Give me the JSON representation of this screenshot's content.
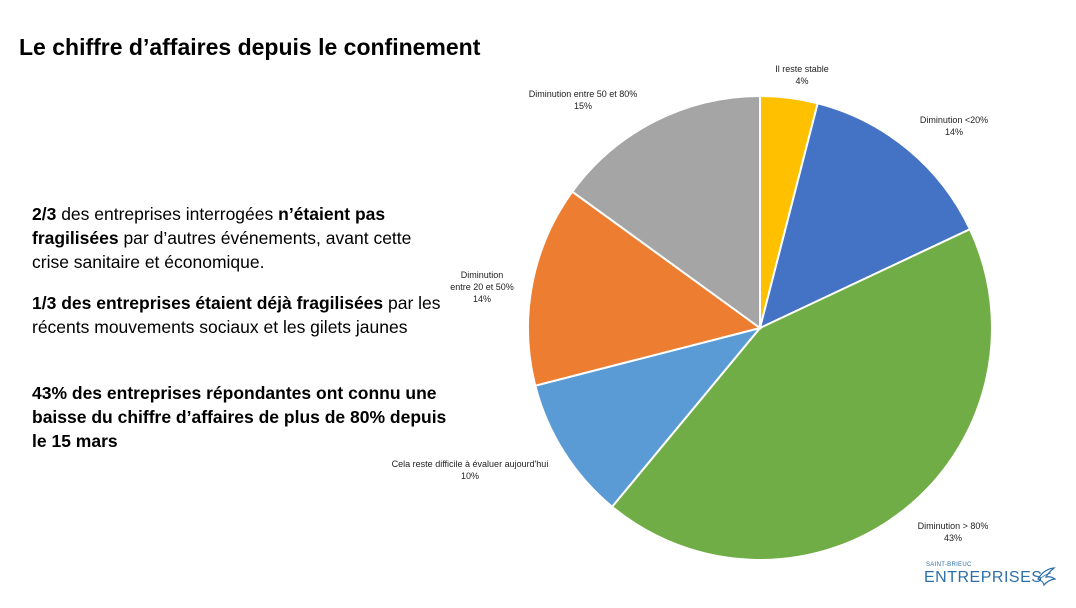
{
  "slide": {
    "title": "Le chiffre d’affaires depuis le confinement",
    "paragraphs": [
      {
        "a_bold": "2/3",
        "b_normal": " des entreprises interrogées ",
        "c_bold": "n’étaient pas fragilisées",
        "d_normal": " par d’autres événements, avant cette crise sanitaire et économique."
      },
      {
        "a_bold": "1/3 des entreprises étaient déjà fragilisées",
        "b_normal": " par les récents mouvements sociaux et les gilets jaunes"
      },
      {
        "a_bold": "43% des entreprises répondantes ont connu une baisse du chiffre d’affaires de plus de 80% depuis le 15 mars"
      }
    ],
    "logo": {
      "top": "SAINT-BRIEUC",
      "main": "ENTREPRISES"
    }
  },
  "chart_data": {
    "type": "pie",
    "slices": [
      {
        "label": "Il reste stable",
        "value": 4,
        "value_label": "4%",
        "color": "#FFC000"
      },
      {
        "label": "Diminution <20%",
        "value": 14,
        "value_label": "14%",
        "color": "#4472C4"
      },
      {
        "label": "Diminution > 80%",
        "value": 43,
        "value_label": "43%",
        "color": "#70AD47"
      },
      {
        "label": "Cela reste difficile à évaluer aujourd'hui",
        "value": 10,
        "value_label": "10%",
        "color": "#5B9BD5"
      },
      {
        "label_lines": [
          "Diminution",
          "entre 20 et 50%"
        ],
        "value": 14,
        "value_label": "14%",
        "color": "#ED7D31"
      },
      {
        "label": "Diminution entre 50 et 80%",
        "value": 15,
        "value_label": "15%",
        "color": "#A5A5A5"
      }
    ]
  }
}
